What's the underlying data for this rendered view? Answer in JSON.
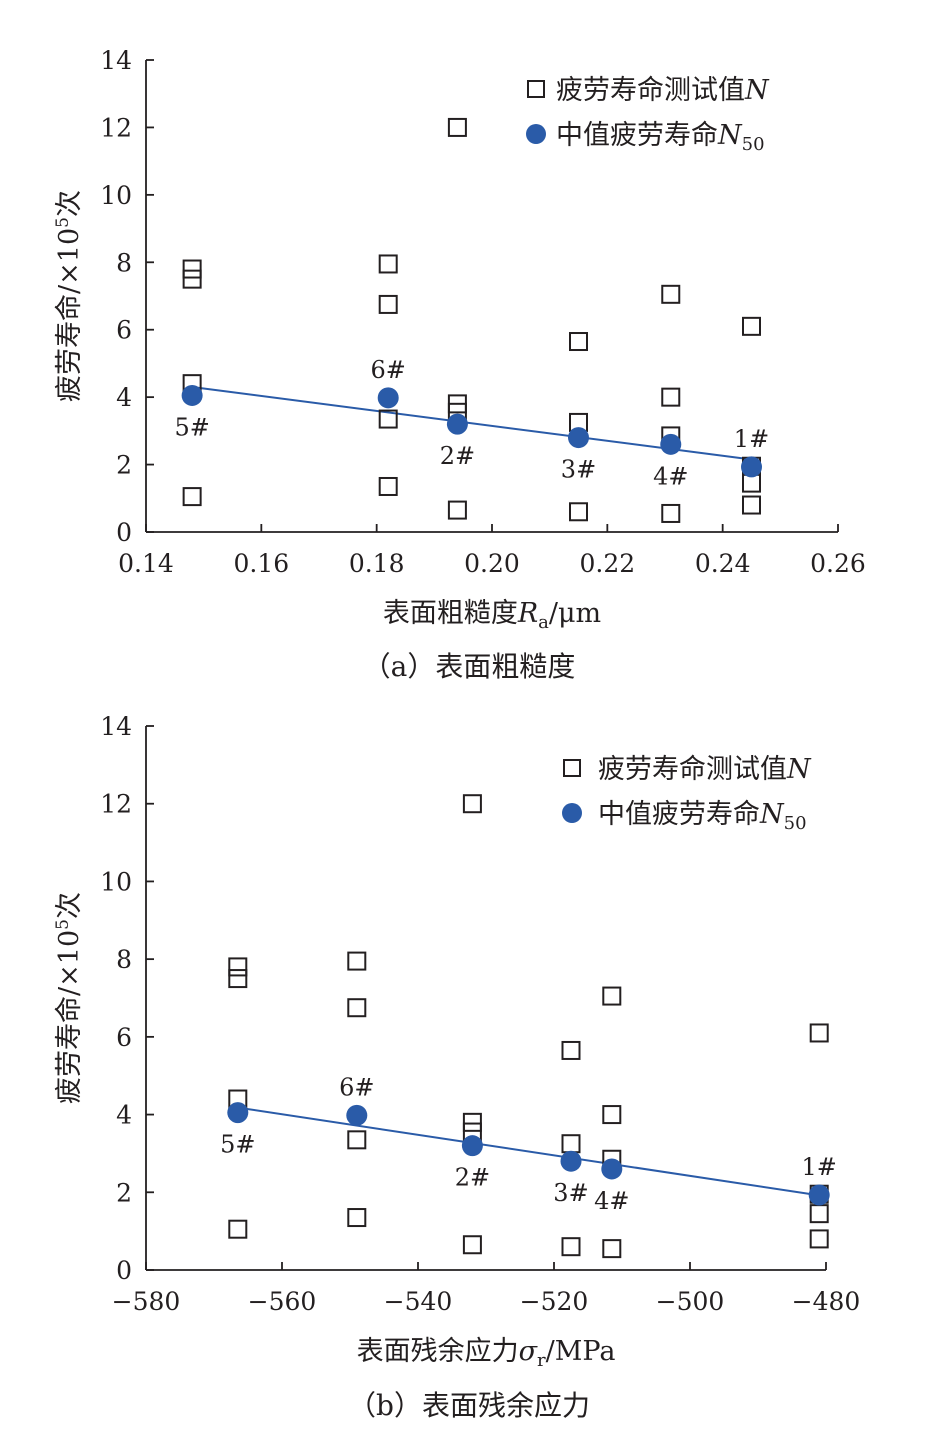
{
  "colors": {
    "median": "#2a5ba8",
    "fit": "#2a5ba8",
    "axis": "#231f20"
  },
  "chart_data": [
    {
      "type": "scatter",
      "caption": "（a）表面粗糙度",
      "xlabel_main": "表面粗糙度",
      "xlabel_var": "R",
      "xlabel_sub": "a",
      "xlabel_unit": "/μm",
      "ylabel_main": "疲劳寿命/×10",
      "ylabel_sup": "5",
      "ylabel_tail": "次",
      "xlim": [
        0.14,
        0.26
      ],
      "ylim": [
        0,
        14
      ],
      "xticks": [
        0.14,
        0.16,
        0.18,
        0.2,
        0.22,
        0.24,
        0.26
      ],
      "xtick_labels": [
        "0.14",
        "0.16",
        "0.18",
        "0.20",
        "0.22",
        "0.24",
        "0.26"
      ],
      "yticks": [
        0,
        2,
        4,
        6,
        8,
        10,
        12,
        14
      ],
      "ytick_labels": [
        "0",
        "2",
        "4",
        "6",
        "8",
        "10",
        "12",
        "14"
      ],
      "legend": {
        "position": "top-right",
        "test_label": "疲劳寿命测试值",
        "test_var": "N",
        "median_label": "中值疲劳寿命",
        "median_var": "N",
        "median_sub": "50"
      },
      "series": [
        {
          "name": "疲劳寿命测试值N",
          "marker": "square",
          "points": [
            {
              "x": 0.148,
              "y": 7.8
            },
            {
              "x": 0.148,
              "y": 7.5
            },
            {
              "x": 0.148,
              "y": 4.4
            },
            {
              "x": 0.148,
              "y": 1.05
            },
            {
              "x": 0.182,
              "y": 7.95
            },
            {
              "x": 0.182,
              "y": 6.75
            },
            {
              "x": 0.182,
              "y": 3.35
            },
            {
              "x": 0.182,
              "y": 1.35
            },
            {
              "x": 0.194,
              "y": 12.0
            },
            {
              "x": 0.194,
              "y": 3.8
            },
            {
              "x": 0.194,
              "y": 3.55
            },
            {
              "x": 0.194,
              "y": 0.65
            },
            {
              "x": 0.215,
              "y": 5.65
            },
            {
              "x": 0.215,
              "y": 3.25
            },
            {
              "x": 0.215,
              "y": 0.6
            },
            {
              "x": 0.231,
              "y": 7.05
            },
            {
              "x": 0.231,
              "y": 4.0
            },
            {
              "x": 0.231,
              "y": 2.85
            },
            {
              "x": 0.231,
              "y": 0.55
            },
            {
              "x": 0.245,
              "y": 6.1
            },
            {
              "x": 0.245,
              "y": 1.95
            },
            {
              "x": 0.245,
              "y": 1.45
            },
            {
              "x": 0.245,
              "y": 0.8
            }
          ]
        },
        {
          "name": "中值疲劳寿命N50",
          "marker": "circle",
          "points": [
            {
              "x": 0.148,
              "y": 4.05,
              "label": "5#",
              "label_pos": "below"
            },
            {
              "x": 0.182,
              "y": 3.98,
              "label": "6#",
              "label_pos": "above"
            },
            {
              "x": 0.194,
              "y": 3.2,
              "label": "2#",
              "label_pos": "below"
            },
            {
              "x": 0.215,
              "y": 2.8,
              "label": "3#",
              "label_pos": "below"
            },
            {
              "x": 0.231,
              "y": 2.6,
              "label": "4#",
              "label_pos": "below"
            },
            {
              "x": 0.245,
              "y": 1.93,
              "label": "1#",
              "label_pos": "above"
            }
          ]
        }
      ],
      "fit_line": {
        "x": [
          0.148,
          0.245
        ],
        "y": [
          4.3,
          2.15
        ]
      }
    },
    {
      "type": "scatter",
      "caption": "（b）表面残余应力",
      "xlabel_main": "表面残余应力",
      "xlabel_var": "σ",
      "xlabel_sub": "r",
      "xlabel_unit": "/MPa",
      "ylabel_main": "疲劳寿命/×10",
      "ylabel_sup": "5",
      "ylabel_tail": "次",
      "xlim": [
        -580,
        -480
      ],
      "ylim": [
        0,
        14
      ],
      "xticks": [
        -580,
        -560,
        -540,
        -520,
        -500,
        -480
      ],
      "xtick_labels": [
        "−580",
        "−560",
        "−540",
        "−520",
        "−500",
        "−480"
      ],
      "yticks": [
        0,
        2,
        4,
        6,
        8,
        10,
        12,
        14
      ],
      "ytick_labels": [
        "0",
        "2",
        "4",
        "6",
        "8",
        "10",
        "12",
        "14"
      ],
      "legend": {
        "position": "top-right",
        "test_label": "疲劳寿命测试值",
        "test_var": "N",
        "median_label": "中值疲劳寿命",
        "median_var": "N",
        "median_sub": "50"
      },
      "series": [
        {
          "name": "疲劳寿命测试值N",
          "marker": "square",
          "points": [
            {
              "x": -566.5,
              "y": 7.8
            },
            {
              "x": -566.5,
              "y": 7.5
            },
            {
              "x": -566.5,
              "y": 4.4
            },
            {
              "x": -566.5,
              "y": 1.05
            },
            {
              "x": -549,
              "y": 7.95
            },
            {
              "x": -549,
              "y": 6.75
            },
            {
              "x": -549,
              "y": 3.35
            },
            {
              "x": -549,
              "y": 1.35
            },
            {
              "x": -532,
              "y": 12.0
            },
            {
              "x": -532,
              "y": 3.8
            },
            {
              "x": -532,
              "y": 3.55
            },
            {
              "x": -532,
              "y": 0.65
            },
            {
              "x": -517.5,
              "y": 5.65
            },
            {
              "x": -517.5,
              "y": 3.25
            },
            {
              "x": -517.5,
              "y": 0.6
            },
            {
              "x": -511.5,
              "y": 7.05
            },
            {
              "x": -511.5,
              "y": 4.0
            },
            {
              "x": -511.5,
              "y": 2.85
            },
            {
              "x": -511.5,
              "y": 0.55
            },
            {
              "x": -481,
              "y": 6.1
            },
            {
              "x": -481,
              "y": 1.95
            },
            {
              "x": -481,
              "y": 1.45
            },
            {
              "x": -481,
              "y": 0.8
            }
          ]
        },
        {
          "name": "中值疲劳寿命N50",
          "marker": "circle",
          "points": [
            {
              "x": -566.5,
              "y": 4.05,
              "label": "5#",
              "label_pos": "below"
            },
            {
              "x": -549,
              "y": 3.98,
              "label": "6#",
              "label_pos": "above"
            },
            {
              "x": -532,
              "y": 3.2,
              "label": "2#",
              "label_pos": "below"
            },
            {
              "x": -517.5,
              "y": 2.8,
              "label": "3#",
              "label_pos": "below"
            },
            {
              "x": -511.5,
              "y": 2.6,
              "label": "4#",
              "label_pos": "below"
            },
            {
              "x": -481,
              "y": 1.93,
              "label": "1#",
              "label_pos": "above"
            }
          ]
        }
      ],
      "fit_line": {
        "x": [
          -566.5,
          -481
        ],
        "y": [
          4.18,
          1.92
        ]
      }
    }
  ]
}
